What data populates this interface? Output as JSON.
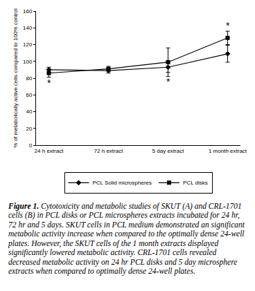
{
  "chart_data": {
    "type": "line",
    "y_label": "% of metabolically active cells compared to 100% control",
    "categories": [
      "24 h extract",
      "72 h extract",
      "5 day extract",
      "1 month extract"
    ],
    "series": [
      {
        "name": "PCL Solid microspheres",
        "color": "#000000",
        "marker": "diamond",
        "line_style": "solid",
        "values": [
          90,
          89,
          93,
          109
        ],
        "error": [
          3,
          3,
          6,
          10
        ]
      },
      {
        "name": "PCL disks",
        "color": "#000000",
        "marker": "square",
        "line_style": "solid",
        "values": [
          86,
          91,
          99,
          128
        ],
        "error": [
          5,
          3,
          17,
          8
        ]
      }
    ],
    "annotations": [
      {
        "text": "*",
        "category": "24 h extract",
        "y": 74
      },
      {
        "text": "*",
        "category": "5 day extract",
        "y": 76
      },
      {
        "text": "*",
        "category": "1 month extract",
        "y": 143
      }
    ],
    "ylim": [
      0,
      160
    ],
    "yticks": [
      0,
      20,
      40,
      60,
      80,
      100,
      120,
      140,
      160
    ],
    "grid": false,
    "legend": "bottom",
    "caption_label": "Figure 1.",
    "caption": "Cytotoxicity and metabolic studies of SKUT (A) and CRL-1701 cells (B) in PCL disks or PCL microspheres extracts incubated for 24 hr, 72 hr and 5 days. SKUT cells in PCL medium demonstrated an significant metabolic activity increase when compared to the optimally dense 24-well plates. However, the SKUT cells of the 1 month extracts displayed significantly lowered metabolic activity. CRL-1701 cells revealed decreased metabolic activity on 24 hr PCL disks and 5 day microsphere extracts when compared to optimally dense 24-well plates."
  }
}
